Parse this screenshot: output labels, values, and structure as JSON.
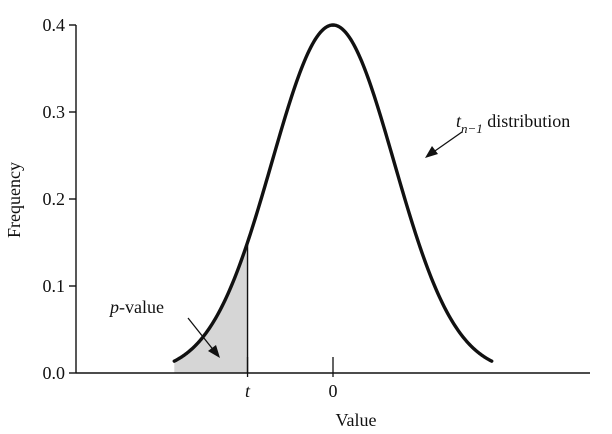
{
  "chart_data": {
    "type": "line",
    "title": "",
    "xlabel": "Value",
    "ylabel": "Frequency",
    "ylim": [
      0,
      0.4
    ],
    "xlim": [
      -4.21,
      4.21
    ],
    "yticks": [
      {
        "value": 0.0,
        "label": "0.0"
      },
      {
        "value": 0.1,
        "label": "0.1"
      },
      {
        "value": 0.2,
        "label": "0.2"
      },
      {
        "value": 0.3,
        "label": "0.3"
      },
      {
        "value": 0.4,
        "label": "0.4"
      }
    ],
    "xticks": [
      {
        "value": -1.4,
        "label": "t",
        "italic": true
      },
      {
        "value": 0,
        "label": "0",
        "italic": false
      }
    ],
    "series": [
      {
        "name": "t n−1 distribution",
        "x": [
          -2.6,
          -2.4,
          -2.2,
          -2.0,
          -1.8,
          -1.6,
          -1.4,
          -1.2,
          -1.0,
          -0.8,
          -0.6,
          -0.4,
          -0.2,
          0.0,
          0.2,
          0.4,
          0.6,
          0.8,
          1.0,
          1.2,
          1.4,
          1.6,
          1.8,
          2.0,
          2.2,
          2.4,
          2.6
        ],
        "y": [
          0.007,
          0.012,
          0.022,
          0.034,
          0.05,
          0.07,
          0.1,
          0.136,
          0.178,
          0.233,
          0.29,
          0.345,
          0.384,
          0.4,
          0.384,
          0.345,
          0.29,
          0.233,
          0.178,
          0.136,
          0.1,
          0.07,
          0.05,
          0.034,
          0.022,
          0.012,
          0.007
        ]
      }
    ],
    "shaded_region": {
      "from": -2.6,
      "to": -1.4,
      "color": "#d6d6d6"
    },
    "annotations": {
      "pvalue": {
        "pre": "p",
        "post": "-value"
      },
      "dist": {
        "base": "t",
        "sub": "n−1",
        "rest": " distribution"
      }
    },
    "colors": {
      "curve": "#111111",
      "axis": "#111111",
      "shade": "#d6d6d6"
    }
  }
}
